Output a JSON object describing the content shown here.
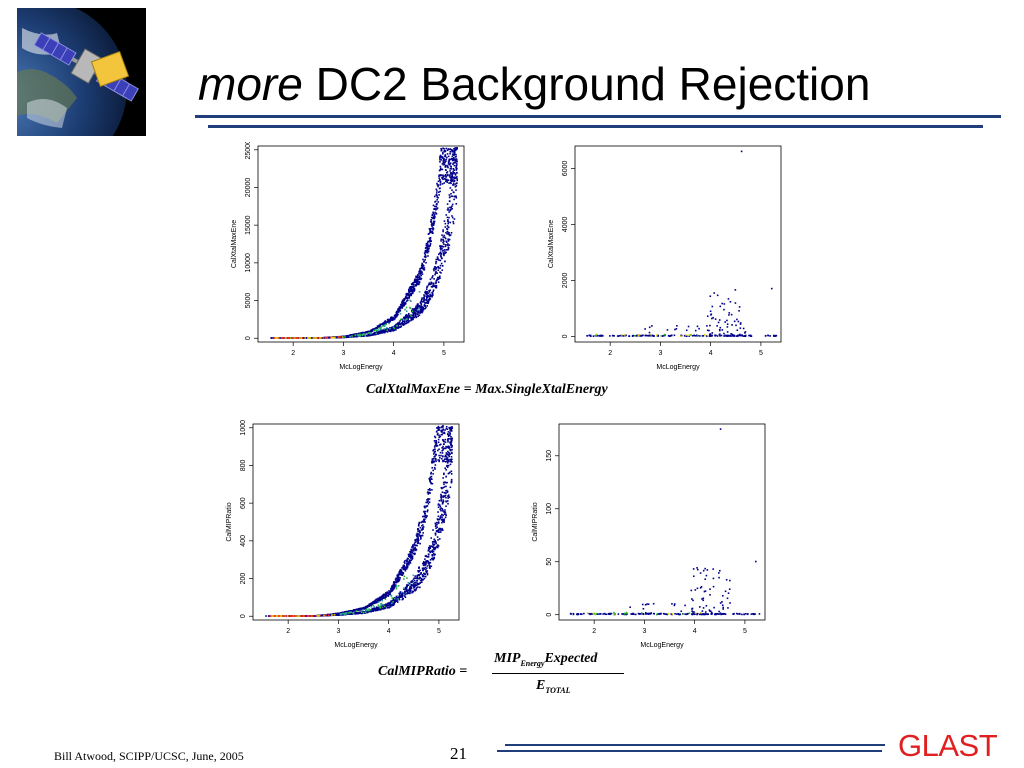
{
  "slide": {
    "title_italic": "more",
    "title_rest": " DC2 Background Rejection",
    "formula1": "CalXtalMaxEne = Max.SingleXtalEnergy",
    "formula2_lhs": "CalMIPRatio =",
    "formula2_num_main": "MIP",
    "formula2_num_sub": "Energy",
    "formula2_num_tail": "Expected",
    "formula2_den_main": "E",
    "formula2_den_sub": "TOTAL",
    "footer_left": "Bill Atwood,  SCIPP/UCSC, June, 2005",
    "page_number": "21",
    "brand": "GLAST"
  },
  "colors": {
    "rule": "#1f3e7a",
    "brand": "#e02020",
    "points": "#00008b"
  },
  "chart_data": [
    {
      "type": "scatter",
      "xlabel": "McLogEnergy",
      "ylabel": "CalXtalMaxEne",
      "xlim": [
        1.3,
        5.4
      ],
      "ylim": [
        -500,
        25500
      ],
      "xticks": [
        "2",
        "3",
        "4",
        "5"
      ],
      "xtick_values": [
        2,
        3,
        4,
        5
      ],
      "yticks": [
        "0",
        "5000",
        "10000",
        "15000",
        "20000",
        "25000"
      ],
      "ytick_values": [
        0,
        5000,
        10000,
        15000,
        20000,
        25000
      ],
      "trend": "exponential",
      "trend_points": [
        [
          1.5,
          0
        ],
        [
          2.5,
          0
        ],
        [
          3,
          150
        ],
        [
          3.5,
          600
        ],
        [
          4,
          2000
        ],
        [
          4.5,
          6000
        ],
        [
          5,
          13000
        ],
        [
          5.2,
          20000
        ]
      ]
    },
    {
      "type": "scatter",
      "xlabel": "McLogEnergy",
      "ylabel": "CalXtalMaxEne",
      "xlim": [
        1.3,
        5.4
      ],
      "ylim": [
        -200,
        6800
      ],
      "xticks": [
        "2",
        "3",
        "4",
        "5"
      ],
      "xtick_values": [
        2,
        3,
        4,
        5
      ],
      "yticks": [
        "0",
        "2000",
        "4000",
        "6000"
      ],
      "ytick_values": [
        0,
        2000,
        4000,
        6000
      ],
      "trend": "sparse",
      "trend_points": [
        [
          1.5,
          0
        ],
        [
          3,
          50
        ],
        [
          4,
          500
        ],
        [
          4.5,
          1500
        ],
        [
          4.6,
          6600
        ],
        [
          5.2,
          1700
        ]
      ]
    },
    {
      "type": "scatter",
      "xlabel": "McLogEnergy",
      "ylabel": "CalMIPRatio",
      "xlim": [
        1.3,
        5.4
      ],
      "ylim": [
        -20,
        1020
      ],
      "xticks": [
        "2",
        "3",
        "4",
        "5"
      ],
      "xtick_values": [
        2,
        3,
        4,
        5
      ],
      "yticks": [
        "0",
        "200",
        "400",
        "600",
        "800",
        "1000"
      ],
      "ytick_values": [
        0,
        200,
        400,
        600,
        800,
        1000
      ],
      "trend": "exponential",
      "trend_points": [
        [
          1.5,
          0
        ],
        [
          2.5,
          0
        ],
        [
          3,
          10
        ],
        [
          3.5,
          30
        ],
        [
          4,
          90
        ],
        [
          4.5,
          260
        ],
        [
          5,
          650
        ],
        [
          5.2,
          950
        ]
      ]
    },
    {
      "type": "scatter",
      "xlabel": "McLogEnergy",
      "ylabel": "CalMIPRatio",
      "xlim": [
        1.3,
        5.4
      ],
      "ylim": [
        -5,
        180
      ],
      "xticks": [
        "2",
        "3",
        "4",
        "5"
      ],
      "xtick_values": [
        2,
        3,
        4,
        5
      ],
      "yticks": [
        "0",
        "50",
        "100",
        "150"
      ],
      "ytick_values": [
        0,
        50,
        100,
        150
      ],
      "trend": "sparse",
      "trend_points": [
        [
          1.5,
          0
        ],
        [
          3,
          3
        ],
        [
          4,
          30
        ],
        [
          4.2,
          80
        ],
        [
          4.5,
          175
        ],
        [
          5.2,
          50
        ]
      ]
    }
  ]
}
